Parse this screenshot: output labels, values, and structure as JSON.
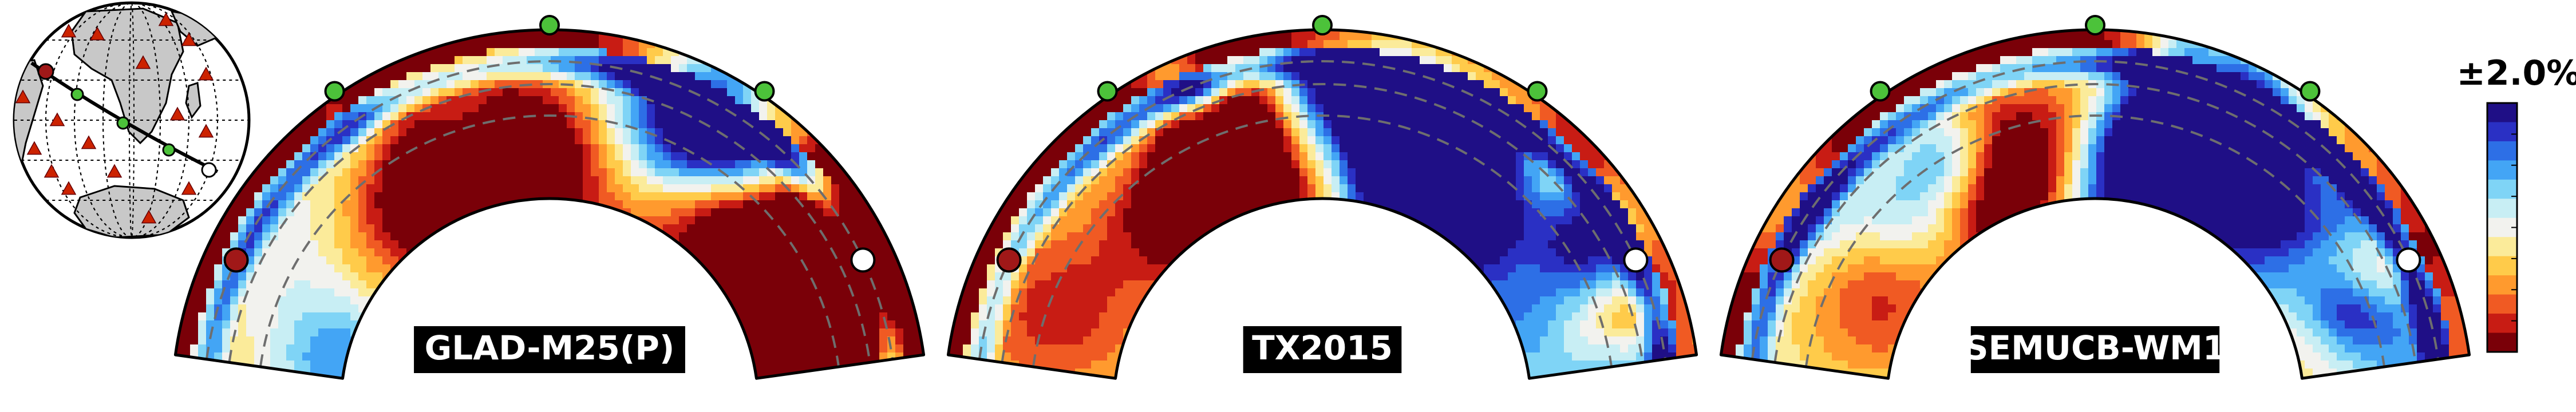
{
  "panels": [
    {
      "label": "GLAD-M25(P)",
      "seed": 11
    },
    {
      "label": "TX2015",
      "seed": 23
    },
    {
      "label": "SEMUCB-WM1",
      "seed": 37
    }
  ],
  "colorbar": {
    "label": "±2.0%",
    "colors_top_to_bottom": [
      "#1f0f86",
      "#2a30c4",
      "#2d6fe6",
      "#43a5f5",
      "#7fd4f6",
      "#c8eef4",
      "#f2f2ee",
      "#fbeb9a",
      "#ffcb4a",
      "#ff9a2e",
      "#f05a23",
      "#c81c14",
      "#7a0008"
    ]
  },
  "globe": {
    "land_color": "#c8c8c8",
    "ocean_color": "#ffffff",
    "station_color": "#cc2200",
    "station_marker": "triangle"
  },
  "markers": {
    "source_color": "#a01818",
    "midpoint_color": "#4cc23a",
    "receiver_color": "#ffffff"
  }
}
